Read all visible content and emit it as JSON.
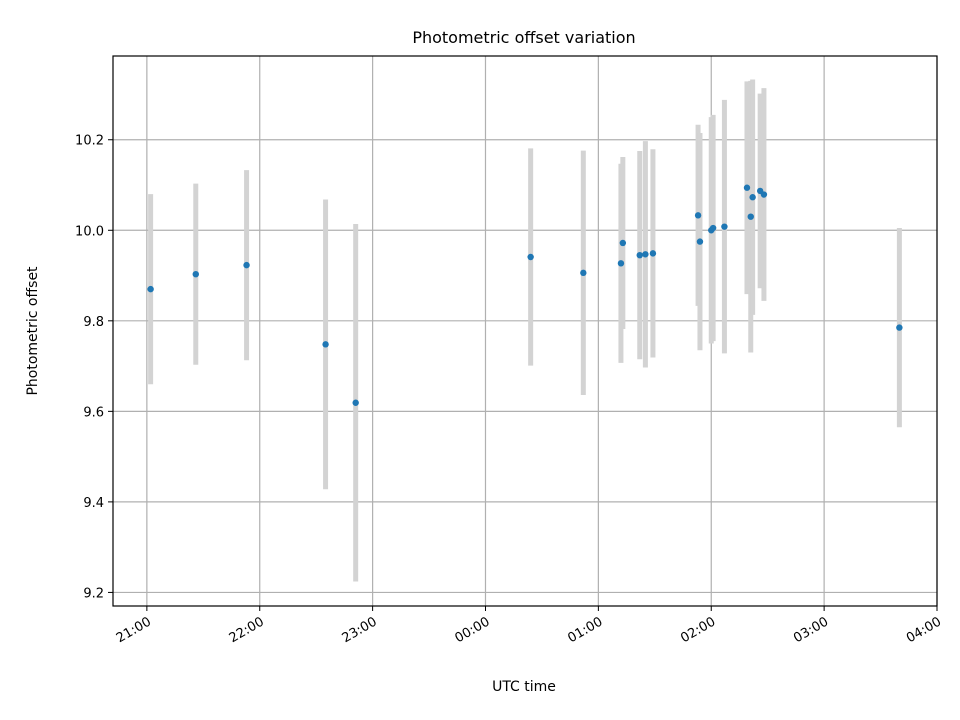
{
  "chart_data": {
    "type": "scatter",
    "title": "Photometric offset variation",
    "xlabel": "UTC time",
    "ylabel": "Photometric offset",
    "xlim": [
      "20:42",
      "04:00"
    ],
    "ylim": [
      9.17,
      10.385
    ],
    "x_ticks": [
      "21:00",
      "22:00",
      "23:00",
      "00:00",
      "01:00",
      "02:00",
      "03:00",
      "04:00"
    ],
    "y_ticks": [
      9.2,
      9.4,
      9.6,
      9.8,
      10.0,
      10.2
    ],
    "y_tick_labels": [
      "9.2",
      "9.4",
      "9.6",
      "9.8",
      "10.0",
      "10.2"
    ],
    "grid": true,
    "colors": {
      "point": "#1f77b4",
      "errorbar": "#d3d3d3",
      "grid": "#b0b0b0"
    },
    "points": [
      {
        "x": "21:02",
        "y": 9.87,
        "err": 0.21
      },
      {
        "x": "21:26",
        "y": 9.903,
        "err": 0.2
      },
      {
        "x": "21:53",
        "y": 9.923,
        "err": 0.21
      },
      {
        "x": "22:35",
        "y": 9.748,
        "err": 0.32
      },
      {
        "x": "22:51",
        "y": 9.619,
        "err": 0.395
      },
      {
        "x": "00:24",
        "y": 9.941,
        "err": 0.24
      },
      {
        "x": "00:52",
        "y": 9.906,
        "err": 0.27
      },
      {
        "x": "01:12",
        "y": 9.927,
        "err": 0.22
      },
      {
        "x": "01:13",
        "y": 9.972,
        "err": 0.19
      },
      {
        "x": "01:22",
        "y": 9.945,
        "err": 0.23
      },
      {
        "x": "01:25",
        "y": 9.947,
        "err": 0.25
      },
      {
        "x": "01:29",
        "y": 9.949,
        "err": 0.23
      },
      {
        "x": "01:53",
        "y": 10.033,
        "err": 0.2
      },
      {
        "x": "01:54",
        "y": 9.975,
        "err": 0.24
      },
      {
        "x": "02:00",
        "y": 10.0,
        "err": 0.25
      },
      {
        "x": "02:01",
        "y": 10.005,
        "err": 0.25
      },
      {
        "x": "02:07",
        "y": 10.008,
        "err": 0.28
      },
      {
        "x": "02:19",
        "y": 10.094,
        "err": 0.235
      },
      {
        "x": "02:21",
        "y": 10.03,
        "err": 0.3
      },
      {
        "x": "02:22",
        "y": 10.073,
        "err": 0.26
      },
      {
        "x": "02:26",
        "y": 10.087,
        "err": 0.215
      },
      {
        "x": "02:28",
        "y": 10.079,
        "err": 0.235
      },
      {
        "x": "03:40",
        "y": 9.785,
        "err": 0.22
      }
    ]
  }
}
